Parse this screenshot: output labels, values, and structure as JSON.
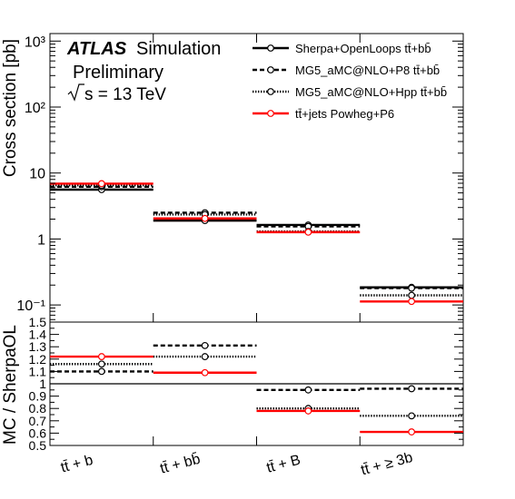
{
  "labels": {
    "atlas": "ATLAS",
    "simulation": "Simulation",
    "preliminary": "Preliminary",
    "energy": "s = 13 TeV"
  },
  "colors": {
    "black": "#000000",
    "red": "#ff0000"
  },
  "chart_data": [
    {
      "type": "line",
      "subtype": "step",
      "ylabel": "Cross section [pb]",
      "yscale": "log",
      "ylim": [
        0.055,
        1300
      ],
      "yticks": [
        {
          "value": 0.1,
          "label": "10⁻¹"
        },
        {
          "value": 1,
          "label": "1"
        },
        {
          "value": 10,
          "label": "10"
        },
        {
          "value": 100,
          "label": "10²"
        },
        {
          "value": 1000,
          "label": "10³"
        }
      ],
      "categories": [
        "tt̄ + b",
        "tt̄ + bb̄",
        "tt̄ + B",
        "tt̄ + ≥ 3b"
      ],
      "legend_position": "top-right",
      "series": [
        {
          "name": "Sherpa+OpenLoops tt̄+bb̄",
          "color": "#000000",
          "style": "solid",
          "values": [
            5.6,
            1.9,
            1.63,
            0.185
          ]
        },
        {
          "name": "MG5_aMC@NLO+P8 tt̄+bb̄",
          "color": "#000000",
          "style": "dashed",
          "values": [
            6.2,
            2.5,
            1.55,
            0.18
          ]
        },
        {
          "name": "MG5_aMC@NLO+Hpp tt̄+bb̄",
          "color": "#000000",
          "style": "dotted",
          "values": [
            6.5,
            2.35,
            1.3,
            0.14
          ]
        },
        {
          "name": "tt̄+jets Powheg+P6",
          "color": "#ff0000",
          "style": "solid",
          "values": [
            6.9,
            2.05,
            1.27,
            0.113
          ]
        }
      ]
    },
    {
      "type": "line",
      "subtype": "step",
      "ylabel": "MC / SherpaOL",
      "ylim": [
        0.5,
        1.5
      ],
      "yticks": [
        {
          "value": 0.5,
          "label": "0.5"
        },
        {
          "value": 0.6,
          "label": "0.6"
        },
        {
          "value": 0.7,
          "label": "0.7"
        },
        {
          "value": 0.8,
          "label": "0.8"
        },
        {
          "value": 0.9,
          "label": "0.9"
        },
        {
          "value": 1.0,
          "label": "1"
        },
        {
          "value": 1.1,
          "label": "1.1"
        },
        {
          "value": 1.2,
          "label": "1.2"
        },
        {
          "value": 1.3,
          "label": "1.3"
        },
        {
          "value": 1.4,
          "label": "1.4"
        },
        {
          "value": 1.5,
          "label": "1.5"
        }
      ],
      "categories": [
        "tt̄ + b",
        "tt̄ + bb̄",
        "tt̄ + B",
        "tt̄ + ≥ 3b"
      ],
      "reference_line": 1.0,
      "series": [
        {
          "name": "MG5_aMC@NLO+P8 tt̄+bb̄",
          "color": "#000000",
          "style": "dashed",
          "values": [
            1.1,
            1.31,
            0.95,
            0.96
          ]
        },
        {
          "name": "MG5_aMC@NLO+Hpp tt̄+bb̄",
          "color": "#000000",
          "style": "dotted",
          "values": [
            1.16,
            1.22,
            0.8,
            0.74
          ]
        },
        {
          "name": "tt̄+jets Powheg+P6",
          "color": "#ff0000",
          "style": "solid",
          "values": [
            1.22,
            1.09,
            0.78,
            0.61
          ]
        }
      ]
    }
  ]
}
